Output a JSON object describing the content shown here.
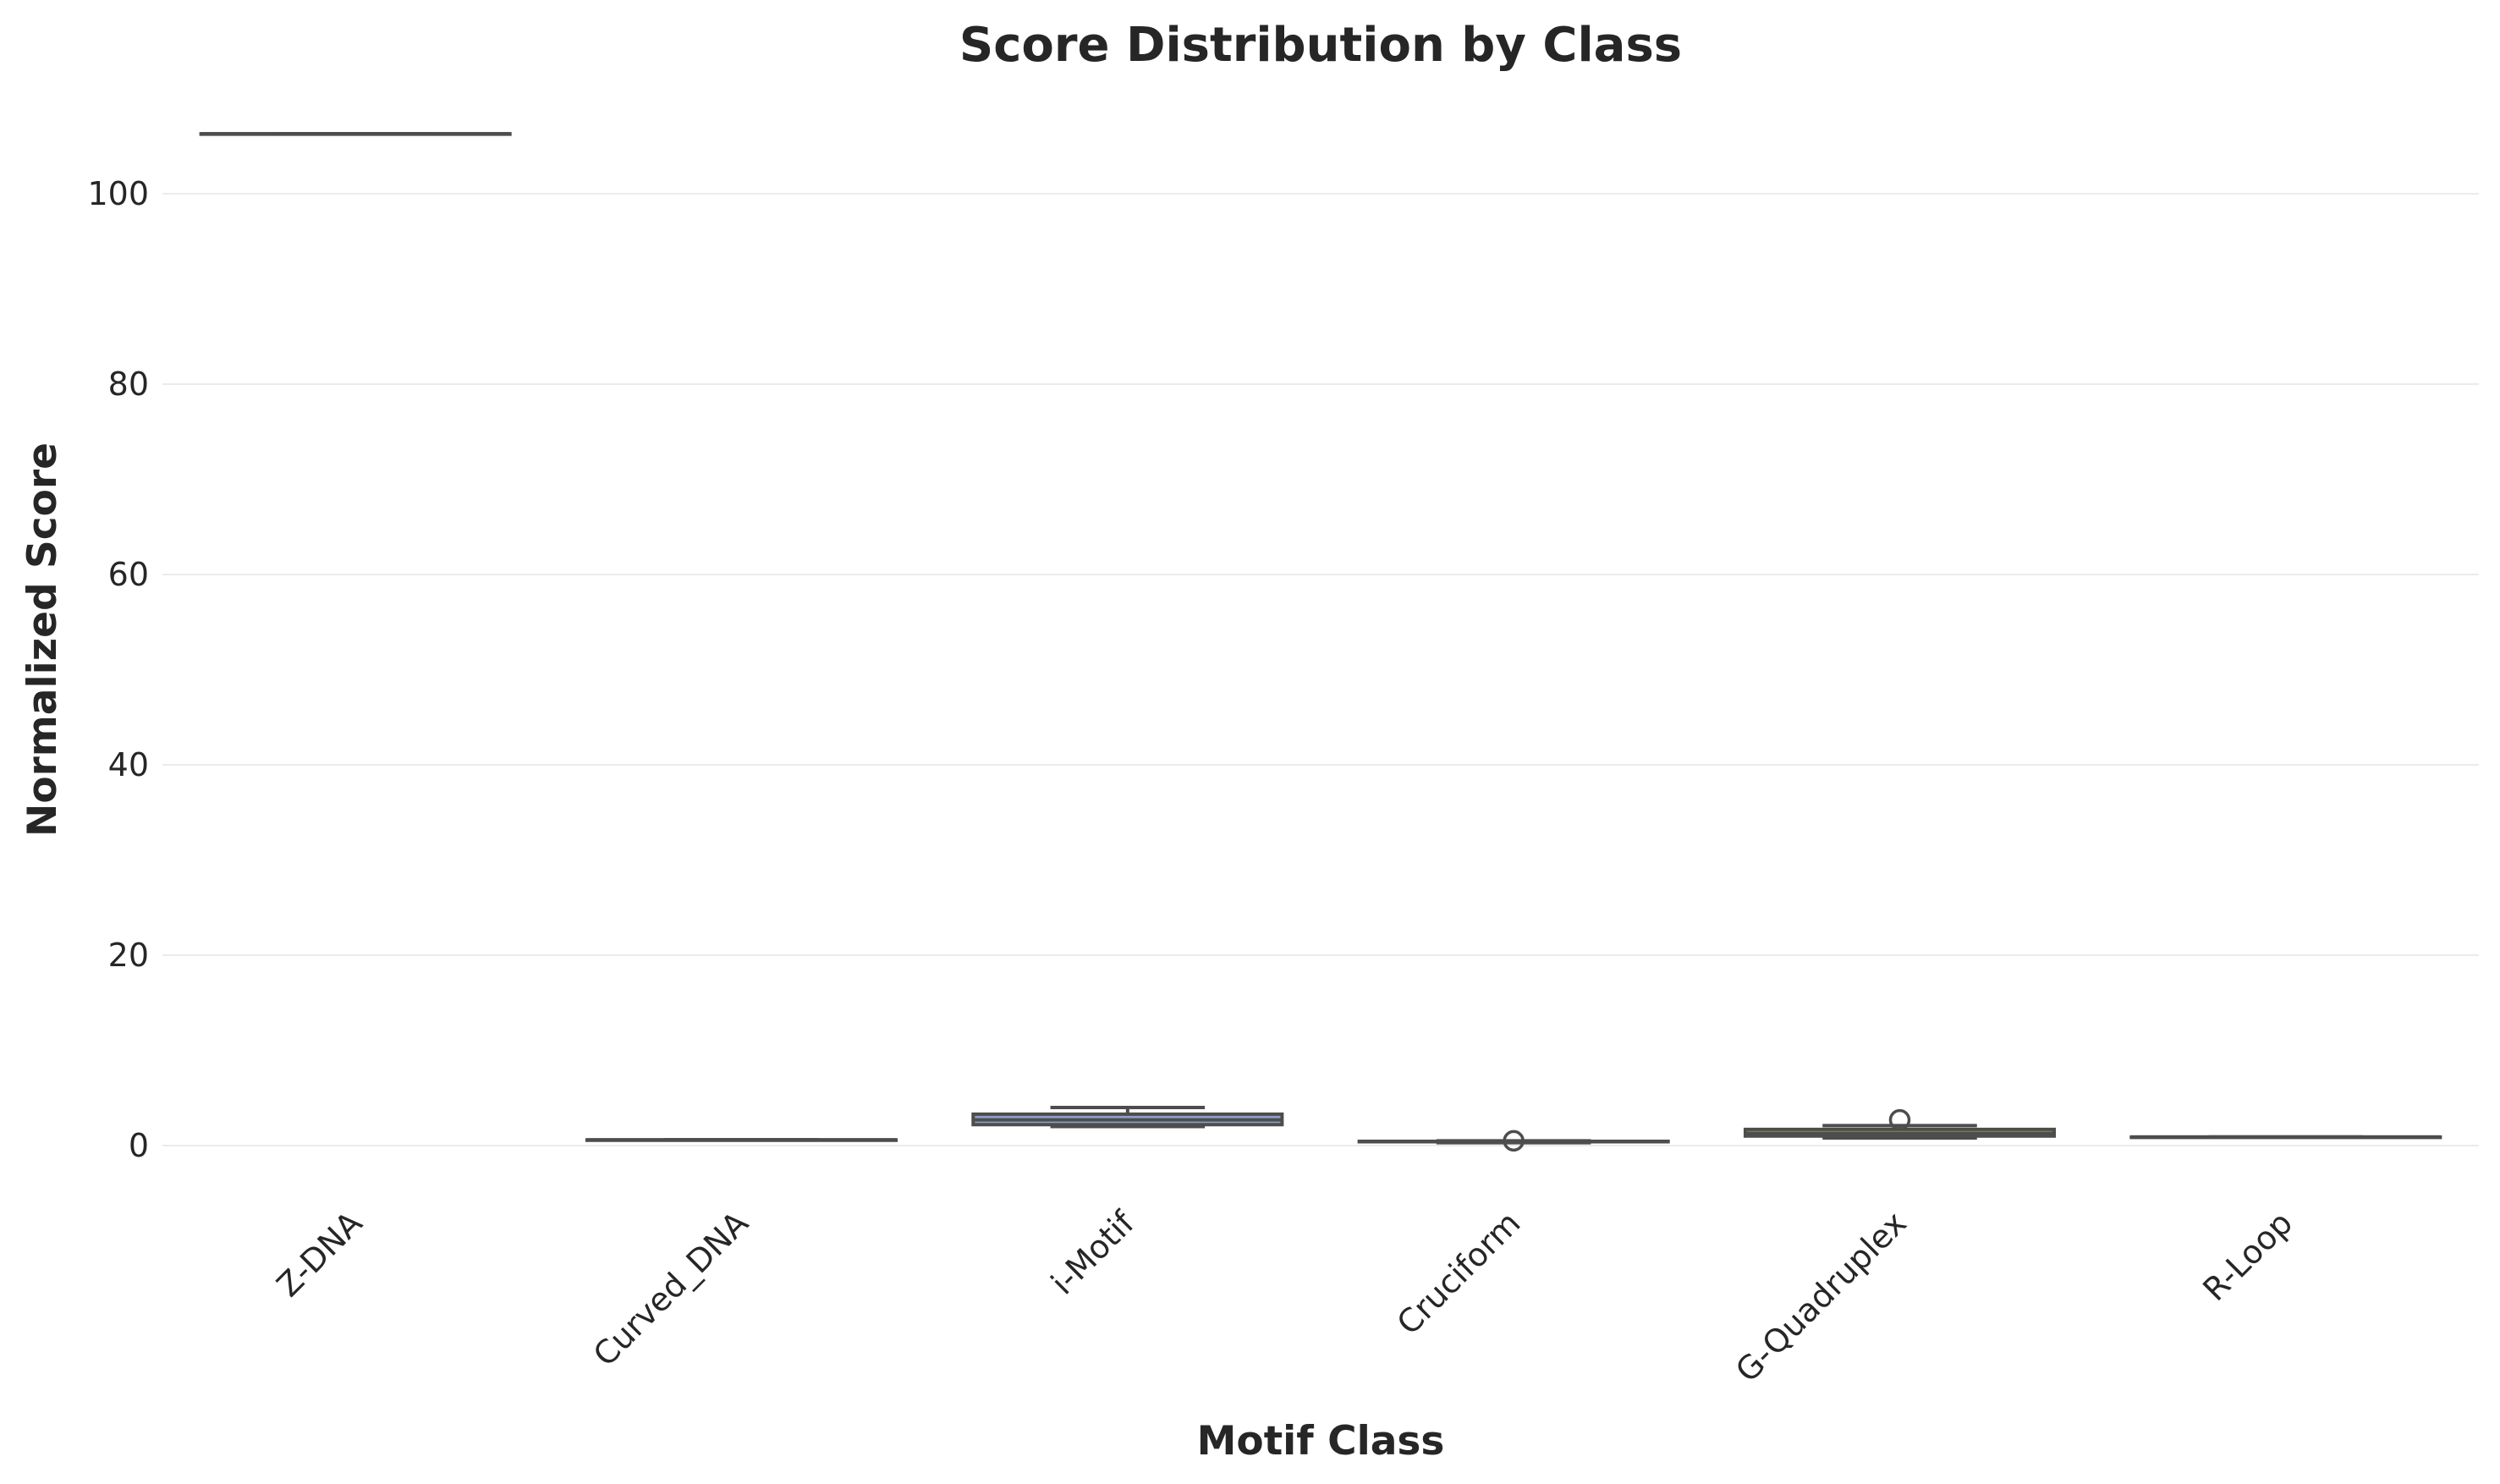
{
  "chart_data": {
    "type": "box",
    "title": "Score Distribution by Class",
    "xlabel": "Motif Class",
    "ylabel": "Normalized Score",
    "ylim": [
      -7,
      112
    ],
    "yticks": [
      0,
      20,
      40,
      60,
      80,
      100
    ],
    "grid": true,
    "categories": [
      "Z-DNA",
      "Curved_DNA",
      "i-Motif",
      "Cruciform",
      "G-Quadruplex",
      "R-Loop"
    ],
    "boxes": [
      {
        "category": "Z-DNA",
        "whislo": 106.3,
        "q1": 106.3,
        "med": 106.3,
        "q3": 106.3,
        "whishi": 106.3,
        "fliers": [],
        "color": "#66c2a5"
      },
      {
        "category": "Curved_DNA",
        "whislo": 0.6,
        "q1": 0.6,
        "med": 0.6,
        "q3": 0.6,
        "whishi": 0.6,
        "fliers": [],
        "color": "#fc8d62"
      },
      {
        "category": "i-Motif",
        "whislo": 2.0,
        "q1": 2.2,
        "med": 2.7,
        "q3": 3.3,
        "whishi": 4.0,
        "fliers": [],
        "color": "#8da0cb"
      },
      {
        "category": "Cruciform",
        "whislo": 0.3,
        "q1": 0.4,
        "med": 0.4,
        "q3": 0.45,
        "whishi": 0.5,
        "fliers": [
          0.5
        ],
        "color": "#e78ac3"
      },
      {
        "category": "G-Quadruplex",
        "whislo": 0.8,
        "q1": 1.0,
        "med": 1.3,
        "q3": 1.7,
        "whishi": 2.1,
        "fliers": [
          2.7
        ],
        "color": "#a6d854"
      },
      {
        "category": "R-Loop",
        "whislo": 0.9,
        "q1": 0.9,
        "med": 0.9,
        "q3": 0.9,
        "whishi": 0.9,
        "fliers": [],
        "color": "#ffd92f"
      }
    ]
  }
}
